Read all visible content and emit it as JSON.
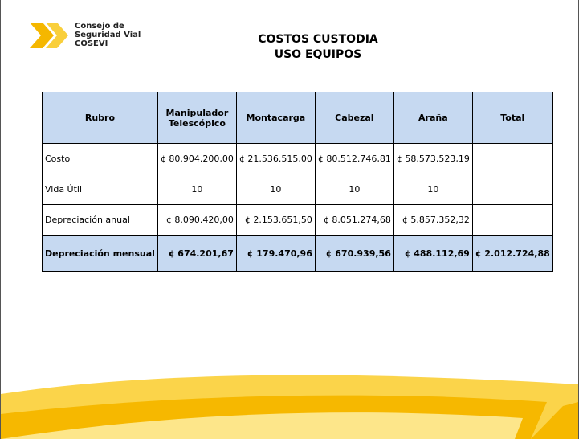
{
  "logo": {
    "lines": [
      "Consejo de",
      "Seguridad Vial",
      "COSEVI"
    ]
  },
  "header": {
    "title_lines": [
      "COSTOS CUSTODIA",
      "USO EQUIPOS"
    ]
  },
  "table": {
    "columns": [
      "Rubro",
      "Manipulador Telescópico",
      "Montacarga",
      "Cabezal",
      "Araña",
      "Total"
    ],
    "rows": [
      {
        "label": "Costo",
        "values": [
          "¢ 80.904.200,00",
          "¢ 21.536.515,00",
          "¢ 80.512.746,81",
          "¢ 58.573.523,19"
        ]
      },
      {
        "label": "Vida Útil",
        "values": [
          "10",
          "10",
          "10",
          "10"
        ]
      },
      {
        "label": "Depreciación anual",
        "values": [
          "¢ 8.090.420,00",
          "¢ 2.153.651,50",
          "¢ 8.051.274,68",
          "¢ 5.857.352,32"
        ]
      },
      {
        "label": "Depreciación mensual",
        "values": [
          "¢ 674.201,67",
          "¢ 179.470,96",
          "¢ 670.939,56",
          "¢ 488.112,69"
        ],
        "total": "¢ 2.012.724,88"
      }
    ]
  }
}
